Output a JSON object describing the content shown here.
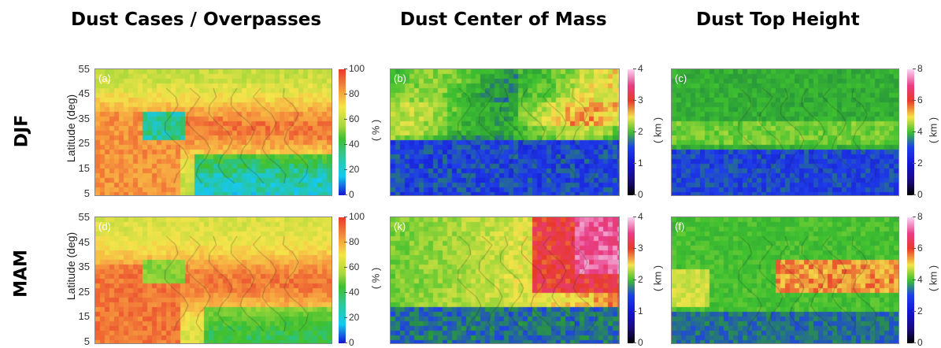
{
  "column_titles": [
    "Dust Cases / Overpasses",
    "Dust Center of Mass",
    "Dust Top Height"
  ],
  "row_labels": [
    "DJF",
    "MAM"
  ],
  "ylabel": "Latitude (deg)",
  "lat_ticks": [
    "55",
    "45",
    "35",
    "25",
    "15",
    "5"
  ],
  "colorbars": [
    {
      "unit": "( % )",
      "ticks": [
        "100",
        "80",
        "60",
        "40",
        "20",
        "0"
      ],
      "range": [
        0,
        100
      ]
    },
    {
      "unit": "( km )",
      "ticks": [
        "4",
        "3",
        "2",
        "1",
        "0"
      ],
      "range": [
        0,
        4
      ]
    },
    {
      "unit": "( km )",
      "ticks": [
        "8",
        "6",
        "4",
        "2",
        "0"
      ],
      "range": [
        0,
        8
      ]
    }
  ],
  "colormap": [
    "#000000",
    "#1a0a80",
    "#1414d2",
    "#1f3fe8",
    "#2a9a3a",
    "#3ec030",
    "#a6d83a",
    "#f4e44a",
    "#f7a040",
    "#e83a2a",
    "#e83c86",
    "#f7d6f3"
  ],
  "chart_data": [
    {
      "type": "heatmap",
      "panel": "(a)",
      "season": "DJF",
      "variable": "Dust Cases / Overpasses",
      "unit": "%",
      "ylim": [
        5,
        55
      ],
      "clim": [
        0,
        100
      ]
    },
    {
      "type": "heatmap",
      "panel": "(b)",
      "season": "DJF",
      "variable": "Dust Center of Mass",
      "unit": "km",
      "ylim": [
        5,
        55
      ],
      "clim": [
        0,
        4
      ]
    },
    {
      "type": "heatmap",
      "panel": "(c)",
      "season": "DJF",
      "variable": "Dust Top Height",
      "unit": "km",
      "ylim": [
        5,
        55
      ],
      "clim": [
        0,
        8
      ]
    },
    {
      "type": "heatmap",
      "panel": "(d)",
      "season": "MAM",
      "variable": "Dust Cases / Overpasses",
      "unit": "%",
      "ylim": [
        5,
        55
      ],
      "clim": [
        0,
        100
      ]
    },
    {
      "type": "heatmap",
      "panel": "(k)",
      "season": "MAM",
      "variable": "Dust Center of Mass",
      "unit": "km",
      "ylim": [
        5,
        55
      ],
      "clim": [
        0,
        4
      ]
    },
    {
      "type": "heatmap",
      "panel": "(f)",
      "season": "MAM",
      "variable": "Dust Top Height",
      "unit": "km",
      "ylim": [
        5,
        55
      ],
      "clim": [
        0,
        8
      ]
    }
  ]
}
